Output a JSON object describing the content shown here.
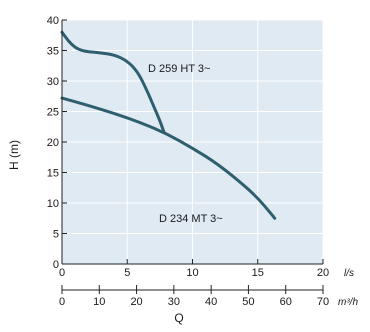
{
  "chart_data": {
    "type": "line",
    "xlabel": "Q",
    "ylabel": "H (m)",
    "x_unit": "l/s",
    "x2_unit": "m³/h",
    "xlim": [
      0,
      20
    ],
    "x2lim": [
      0,
      70
    ],
    "ylim": [
      0,
      40
    ],
    "xticks": [
      0,
      5,
      10,
      15,
      20
    ],
    "x2ticks": [
      0,
      10,
      20,
      30,
      40,
      50,
      60,
      70
    ],
    "yticks": [
      0,
      5,
      10,
      15,
      20,
      25,
      30,
      35,
      40
    ],
    "grid": true,
    "plot_background": "#dfeaf3",
    "line_color": "#2f5f6f",
    "series": [
      {
        "name": "D 259 HT 3~",
        "x": [
          0,
          0.5,
          1,
          1.5,
          2,
          3,
          4,
          5,
          5.8,
          6.5,
          7,
          7.5,
          7.8
        ],
        "y": [
          38,
          36.5,
          35.5,
          35,
          34.8,
          34.6,
          34.3,
          33.3,
          31.5,
          28.5,
          26,
          23.5,
          21.7
        ]
      },
      {
        "name": "D 234 MT 3~",
        "x": [
          0,
          2,
          4,
          6,
          8,
          10,
          12,
          14,
          15,
          16,
          16.3
        ],
        "y": [
          27.2,
          26,
          24.7,
          23.2,
          21.4,
          19,
          16.3,
          12.8,
          10.8,
          8.3,
          7.5
        ]
      }
    ]
  }
}
